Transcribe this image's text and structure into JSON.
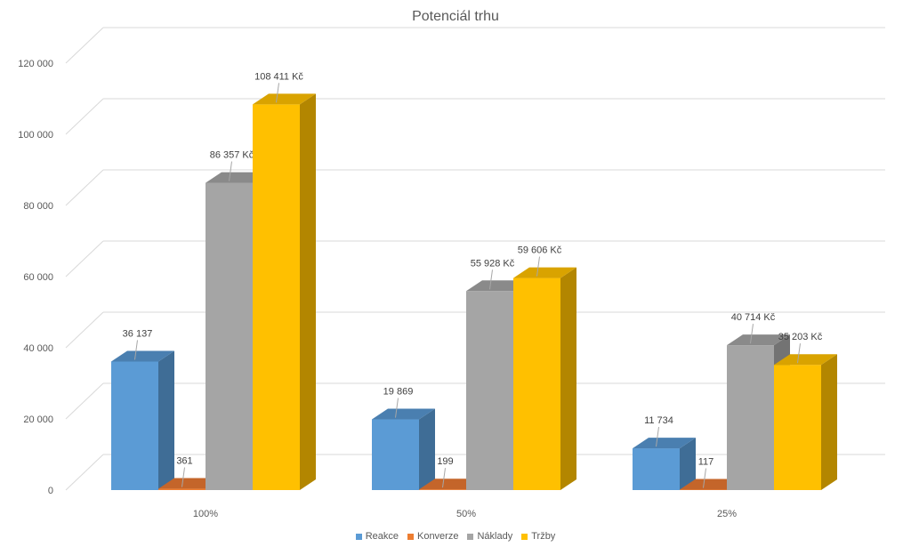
{
  "chart_data": {
    "type": "bar",
    "title": "Potenciál trhu",
    "categories": [
      "100%",
      "50%",
      "25%"
    ],
    "series": [
      {
        "name": "Reakce",
        "values": [
          36137,
          19869,
          11734
        ],
        "labels": [
          "36 137",
          "19 869",
          "11 734"
        ],
        "color": "#5b9bd5",
        "side": "#3f6d96",
        "top": "#4a7fb0"
      },
      {
        "name": "Konverze",
        "values": [
          361,
          199,
          117
        ],
        "labels": [
          "361",
          "199",
          "117"
        ],
        "color": "#ed7d31",
        "side": "#a6561f",
        "top": "#c4652a"
      },
      {
        "name": "Náklady",
        "values": [
          86357,
          55928,
          40714
        ],
        "labels": [
          "86 357 Kč",
          "55 928 Kč",
          "40 714 Kč"
        ],
        "color": "#a5a5a5",
        "side": "#737373",
        "top": "#8a8a8a"
      },
      {
        "name": "Tržby",
        "values": [
          108411,
          59606,
          35203
        ],
        "labels": [
          "108 411 Kč",
          "59 606 Kč",
          "35 203 Kč"
        ],
        "color": "#ffc000",
        "side": "#b38600",
        "top": "#d9a300"
      }
    ],
    "yticks": [
      0,
      20000,
      40000,
      60000,
      80000,
      100000,
      120000
    ],
    "ytick_labels": [
      "0",
      "20 000",
      "40 000",
      "60 000",
      "80 000",
      "100 000",
      "120 000"
    ],
    "ylim": [
      0,
      120000
    ],
    "grid": true,
    "legend": "bottom"
  }
}
